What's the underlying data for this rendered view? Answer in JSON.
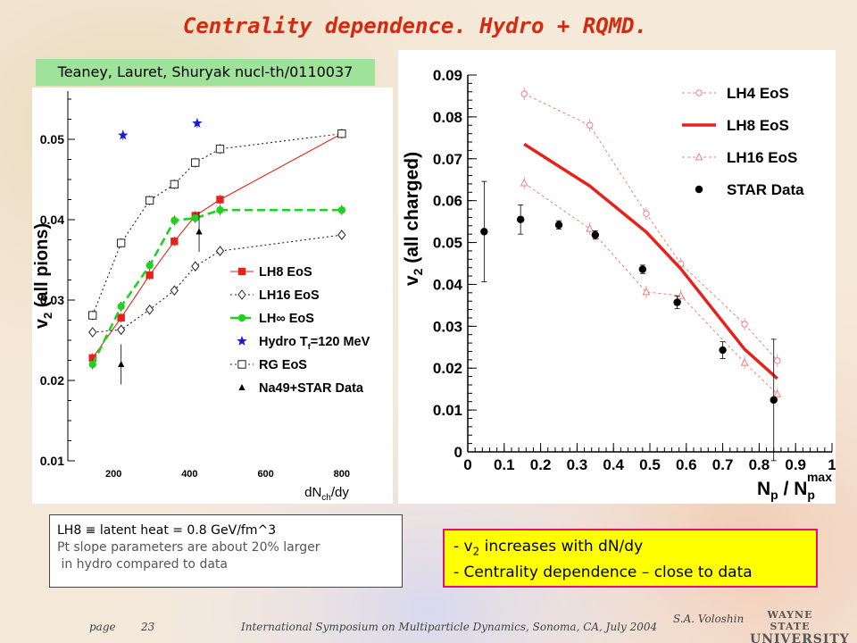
{
  "slide": {
    "title": "Centrality dependence. Hydro + RQMD.",
    "citation": "Teaney, Lauret, Shuryak nucl-th/0110037"
  },
  "notes": {
    "line1": "LH8 ≡ latent heat = 0.8 GeV/fm^3",
    "line2": "Pt slope parameters are about 20% larger",
    "line3": " in hydro compared to data"
  },
  "highlight": {
    "line1_prefix": "- v",
    "line1_sub": "2",
    "line1_suffix": " increases with dN/dy",
    "line2": "- Centrality dependence – close to data"
  },
  "footer": {
    "page_label": "page",
    "page_number": "23",
    "conference": "International Symposium on Multiparticle Dynamics, Sonoma, CA, July 2004",
    "author": "S.A. Voloshin",
    "logo_line1": "WAYNE STATE",
    "logo_line2": "UNIVERSITY"
  },
  "colors": {
    "title": "#d42a0e",
    "red": "#e8211a",
    "green": "#1fd21f",
    "blue": "#1a1ad4",
    "pink": "#f08080",
    "highlight_bg": "#ffff00",
    "highlight_border": "#e0107a",
    "citation_bg": "#9fe39a"
  },
  "chart_data": [
    {
      "type": "line",
      "xlabel": "dN",
      "xlabel_sub": "ch",
      "xlabel_suffix": "/dy",
      "ylabel": "v",
      "ylabel_sub": "2",
      "ylabel_suffix": " (all pions)",
      "xlim": [
        80,
        920
      ],
      "ylim": [
        0.01,
        0.056
      ],
      "xticks": [
        200,
        400,
        600,
        800
      ],
      "yticks": [
        0.01,
        0.02,
        0.03,
        0.04,
        0.05
      ],
      "ytick_labels": [
        "0.01",
        "0.02",
        "0.03",
        "0.04",
        "0.05"
      ],
      "grid": false,
      "legend_position": "bottom-right",
      "series": [
        {
          "name": "LH8 EoS",
          "color": "#e8211a",
          "marker": "square",
          "line": "solid",
          "points": [
            [
              145,
              0.0228
            ],
            [
              220,
              0.0278
            ],
            [
              295,
              0.0331
            ],
            [
              360,
              0.0373
            ],
            [
              415,
              0.0405
            ],
            [
              480,
              0.0425
            ],
            [
              800,
              0.0507
            ]
          ]
        },
        {
          "name": "LH16 EoS",
          "color": "#222222",
          "marker": "diamond",
          "line": "dotted",
          "points": [
            [
              145,
              0.026
            ],
            [
              220,
              0.0263
            ],
            [
              295,
              0.0288
            ],
            [
              360,
              0.0312
            ],
            [
              415,
              0.0342
            ],
            [
              480,
              0.0361
            ],
            [
              800,
              0.0381
            ]
          ]
        },
        {
          "name": "LH∞ EoS",
          "color": "#1fd21f",
          "marker": "circle",
          "line": "dashed",
          "points": [
            [
              145,
              0.022
            ],
            [
              220,
              0.0292
            ],
            [
              295,
              0.0343
            ],
            [
              360,
              0.0399
            ],
            [
              415,
              0.0402
            ],
            [
              480,
              0.0412
            ],
            [
              800,
              0.0412
            ]
          ]
        },
        {
          "name": "Hydro T",
          "name_sub": "f",
          "name_suffix": "=120 MeV",
          "color": "#1a1ad4",
          "marker": "star",
          "line": "none",
          "points": [
            [
              225,
              0.0505
            ],
            [
              420,
              0.052
            ]
          ]
        },
        {
          "name": "RG EoS",
          "color": "#222222",
          "marker": "open-square",
          "line": "dotted",
          "points": [
            [
              145,
              0.0281
            ],
            [
              220,
              0.0371
            ],
            [
              295,
              0.0424
            ],
            [
              360,
              0.0444
            ],
            [
              415,
              0.0471
            ],
            [
              480,
              0.0488
            ],
            [
              800,
              0.0507
            ]
          ]
        },
        {
          "name": "Na49+STAR Data",
          "color": "#000000",
          "marker": "triangle",
          "line": "none",
          "points": [
            [
              220,
              0.022
            ],
            [
              425,
              0.0385
            ]
          ],
          "errors": [
            0.0025,
            0.0025
          ]
        }
      ]
    },
    {
      "type": "line",
      "xlabel": "N",
      "xlabel_sub": "p",
      "xlabel_mid": " / N",
      "xlabel_sub2": "p",
      "xlabel_sup2": "max",
      "ylabel": "v",
      "ylabel_sub": "2",
      "ylabel_suffix": " (all charged)",
      "xlim": [
        0,
        1
      ],
      "ylim": [
        0,
        0.09
      ],
      "xticks": [
        0,
        0.1,
        0.2,
        0.3,
        0.4,
        0.5,
        0.6,
        0.7,
        0.8,
        0.9,
        1
      ],
      "xtick_labels": [
        "0",
        "0.1",
        "0.2",
        "0.3",
        "0.4",
        "0.5",
        "0.6",
        "0.7",
        "0.8",
        "0.9",
        "1"
      ],
      "yticks": [
        0,
        0.01,
        0.02,
        0.03,
        0.04,
        0.05,
        0.06,
        0.07,
        0.08,
        0.09
      ],
      "ytick_labels": [
        "0",
        "0.01",
        "0.02",
        "0.03",
        "0.04",
        "0.05",
        "0.06",
        "0.07",
        "0.08",
        "0.09"
      ],
      "grid": false,
      "legend_position": "top-right",
      "series": [
        {
          "name": "LH4 EoS",
          "color": "#f08080",
          "marker": "open-circle",
          "line": "dotted",
          "points": [
            [
              0.155,
              0.0855
            ],
            [
              0.335,
              0.078
            ],
            [
              0.49,
              0.0569
            ],
            [
              0.585,
              0.0449
            ],
            [
              0.76,
              0.0305
            ],
            [
              0.85,
              0.0218
            ]
          ]
        },
        {
          "name": "LH8 EoS",
          "color": "#e8211a",
          "marker": "none",
          "line": "thick",
          "points": [
            [
              0.155,
              0.0735
            ],
            [
              0.335,
              0.0635
            ],
            [
              0.49,
              0.0525
            ],
            [
              0.585,
              0.0437
            ],
            [
              0.76,
              0.0245
            ],
            [
              0.85,
              0.0175
            ]
          ]
        },
        {
          "name": "LH16 EoS",
          "color": "#f08080",
          "marker": "open-triangle",
          "line": "dotted",
          "points": [
            [
              0.155,
              0.0642
            ],
            [
              0.335,
              0.0533
            ],
            [
              0.49,
              0.0382
            ],
            [
              0.585,
              0.0373
            ],
            [
              0.76,
              0.0213
            ],
            [
              0.85,
              0.0138
            ]
          ]
        },
        {
          "name": "STAR Data",
          "color": "#000000",
          "marker": "circle",
          "line": "none",
          "points": [
            [
              0.045,
              0.0526
            ],
            [
              0.145,
              0.0555
            ],
            [
              0.25,
              0.0542
            ],
            [
              0.35,
              0.0518
            ],
            [
              0.48,
              0.0436
            ],
            [
              0.575,
              0.0357
            ],
            [
              0.7,
              0.0243
            ],
            [
              0.84,
              0.0124
            ]
          ],
          "errors": [
            0.012,
            0.0035,
            0.001,
            0.001,
            0.001,
            0.0015,
            0.002,
            0.0145
          ]
        }
      ]
    }
  ]
}
